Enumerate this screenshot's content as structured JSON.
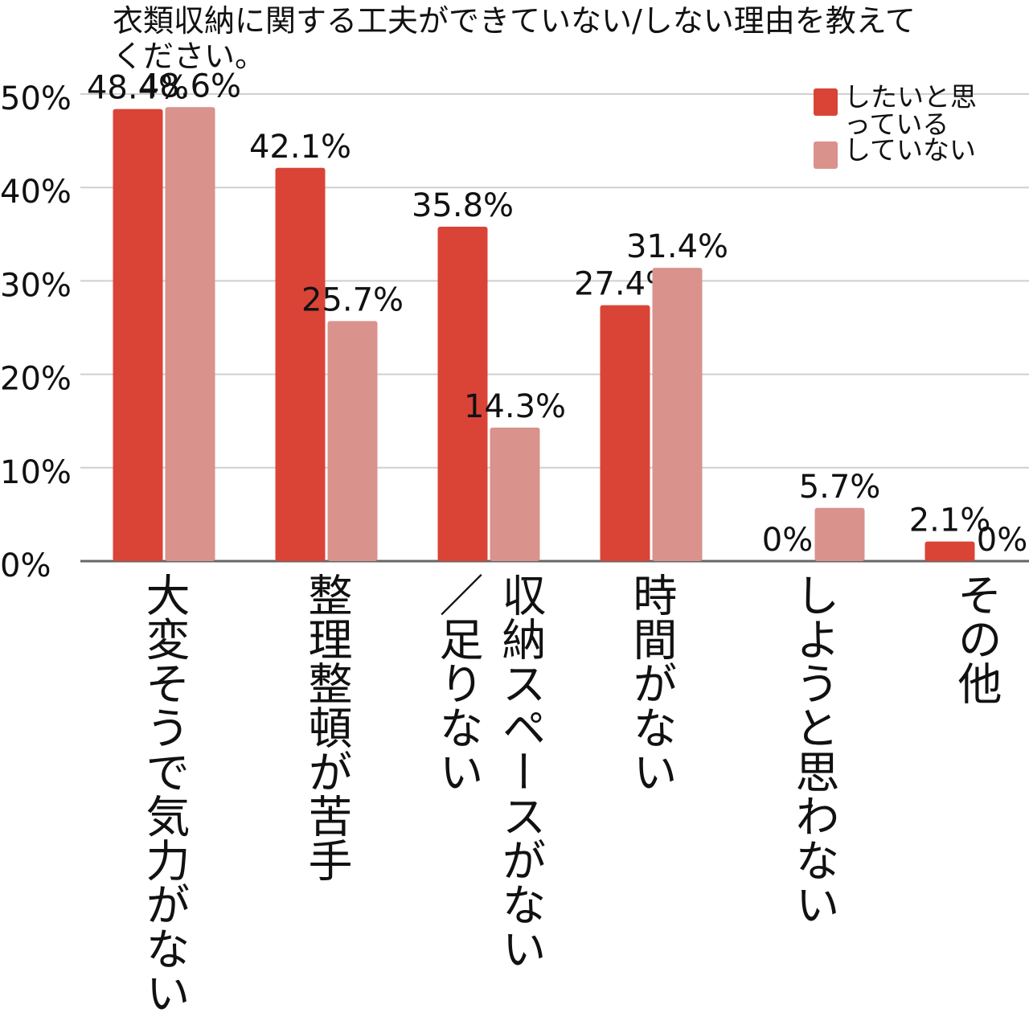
{
  "chart_data": {
    "type": "bar",
    "title": "衣類収納に関する工夫ができていない/しない理由を教えてください。",
    "categories": [
      "大変そうで気力がない",
      "整理整頓が苦手",
      "収納スペースがない\n／足りない",
      "時間がない",
      "しようと思わない",
      "その他"
    ],
    "series": [
      {
        "name": "したいと思っている",
        "color": "#d94437",
        "values": [
          48.4,
          42.1,
          35.8,
          27.4,
          0,
          2.1
        ],
        "value_labels": [
          "48.4%",
          "42.1%",
          "35.8%",
          "27.4%",
          "0%",
          "2.1%"
        ]
      },
      {
        "name": "していない",
        "color": "#d9928c",
        "values": [
          48.6,
          25.7,
          14.3,
          31.4,
          5.7,
          0
        ],
        "value_labels": [
          "48.6%",
          "25.7%",
          "14.3%",
          "31.4%",
          "5.7%",
          "0%"
        ]
      }
    ],
    "ylim": [
      0,
      50
    ],
    "yticks": [
      {
        "value": 0,
        "label": "0%"
      },
      {
        "value": 10,
        "label": "10%"
      },
      {
        "value": 20,
        "label": "20%"
      },
      {
        "value": 30,
        "label": "30%"
      },
      {
        "value": 40,
        "label": "40%"
      },
      {
        "value": 50,
        "label": "50%"
      }
    ],
    "grid": true,
    "legend": "top-right"
  }
}
